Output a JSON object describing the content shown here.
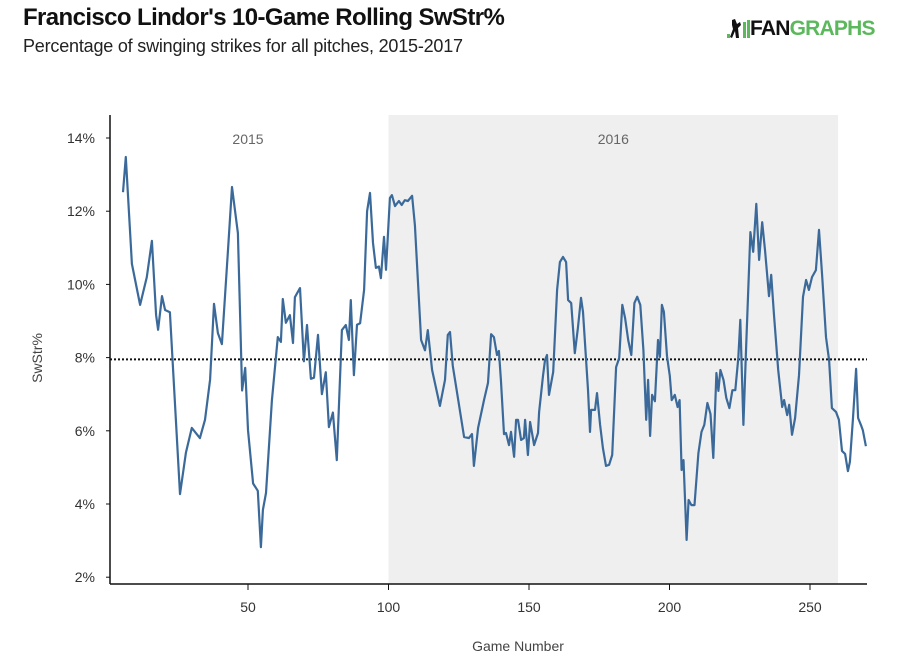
{
  "header": {
    "title": "Francisco Lindor's 10-Game Rolling SwStr%",
    "subtitle": "Percentage of swinging strikes for all pitches, 2015-2017",
    "logo_text_dark": "FAN",
    "logo_text_green": "GRAPHS",
    "logo_colors": {
      "dark": "#111111",
      "green": "#5cb85c"
    }
  },
  "chart_data": {
    "type": "line",
    "title": "Francisco Lindor's 10-Game Rolling SwStr%",
    "subtitle": "Percentage of swinging strikes for all pitches, 2015-2017",
    "xlabel": "Game Number",
    "ylabel": "SwStr%",
    "xlim": [
      0,
      272
    ],
    "ylim": [
      2,
      14.5
    ],
    "x_ticks": [
      50,
      100,
      150,
      200,
      250
    ],
    "x_tick_labels": [
      "50",
      "100",
      "150",
      "200",
      "250"
    ],
    "y_ticks": [
      2,
      4,
      6,
      8,
      10,
      12,
      14
    ],
    "y_tick_labels": [
      "2%",
      "4%",
      "6%",
      "8%",
      "10%",
      "12%",
      "14%"
    ],
    "grid": false,
    "reference_line": {
      "value": 7.95,
      "style": "dotted",
      "color": "#111111"
    },
    "season_shading": [
      {
        "label": "2015",
        "start": 0,
        "end": 100,
        "shaded": false
      },
      {
        "label": "2016",
        "start": 100,
        "end": 260,
        "shaded": true,
        "color": "#efefef"
      }
    ],
    "series": [
      {
        "name": "10-Game Rolling SwStr%",
        "color": "#3b6a9a",
        "x": [
          5.5,
          6.5,
          8.7,
          11.6,
          14,
          15.8,
          17.3,
          18,
          19.4,
          20.5,
          22.2,
          25.8,
          27.9,
          30,
          32.9,
          34.7,
          36.5,
          37.9,
          39.3,
          40.7,
          42.9,
          44.3,
          46.4,
          47.9,
          49,
          50,
          51.8,
          53.5,
          54.6,
          55.3,
          56.4,
          58.5,
          60.6,
          61.7,
          62.4,
          63.5,
          64.9,
          66,
          66.7,
          68.5,
          69.9,
          71,
          72.4,
          73.5,
          74.9,
          76.3,
          77.7,
          78.8,
          80.2,
          81.6,
          83.4,
          84.8,
          85.9,
          86.6,
          87.7,
          88.8,
          89.9,
          91.3,
          92.4,
          93.4,
          94.5,
          95.5,
          96.6,
          97.3,
          98.4,
          99.1,
          100.5,
          101.2,
          102.3,
          103.7,
          104.7,
          105.8,
          106.9,
          108.4,
          109.4,
          111.6,
          113,
          114,
          115.5,
          118.3,
          120.1,
          121.1,
          121.9,
          122.9,
          124.7,
          126.9,
          128.6,
          129.7,
          130.4,
          131.9,
          134,
          135.4,
          136.5,
          137.5,
          138.6,
          139.3,
          140,
          141.1,
          141.8,
          142.9,
          143.6,
          144.7,
          145.4,
          146.1,
          147.2,
          148.2,
          148.6,
          149.6,
          150.4,
          151.8,
          153.2,
          153.6,
          155,
          155.7,
          156.4,
          157.1,
          158.6,
          160,
          161,
          162.1,
          163.2,
          163.9,
          165,
          166.3,
          167.4,
          168.5,
          169.2,
          171,
          171.7,
          172.1,
          173.5,
          174.2,
          175.3,
          176.3,
          177.4,
          178.5,
          179.6,
          181,
          182.1,
          183.2,
          184.2,
          185.3,
          186.4,
          187.5,
          188.5,
          189.6,
          190.7,
          191.7,
          192.4,
          193.1,
          193.8,
          194.8,
          195.9,
          196.6,
          197.3,
          198,
          199.1,
          200.1,
          200.8,
          201.9,
          202.9,
          203.6,
          204.3,
          205,
          206.1,
          206.8,
          207.8,
          208.9,
          210.3,
          211.4,
          212.4,
          213.5,
          214.6,
          215.6,
          216.7,
          217.4,
          218.1,
          219.2,
          220.2,
          221.3,
          222.4,
          223.4,
          224.5,
          225.2,
          226.3,
          227.3,
          228.8,
          229.8,
          230.9,
          231.9,
          233,
          234,
          235.4,
          236.2,
          237.2,
          238.7,
          240.1,
          240.8,
          241.9,
          242.6,
          243.6,
          244.7,
          246.1,
          247.5,
          248.6,
          249.6,
          250.7,
          252.1,
          253.2,
          254.3,
          255.7,
          256.8,
          257.8,
          259.3,
          260.3,
          261.4,
          262.5,
          263.5,
          264.2,
          265.3,
          266.4,
          267.1,
          268.1,
          268.8,
          269.9
        ],
        "y": [
          12.52,
          13.48,
          10.56,
          9.44,
          10.2,
          11.19,
          9.16,
          8.76,
          9.68,
          9.3,
          9.24,
          4.27,
          5.4,
          6.08,
          5.8,
          6.3,
          7.4,
          9.47,
          8.67,
          8.37,
          10.94,
          12.66,
          11.4,
          7.1,
          7.72,
          6.02,
          4.56,
          4.36,
          2.82,
          3.84,
          4.3,
          6.83,
          8.56,
          8.43,
          9.6,
          8.95,
          9.16,
          8.4,
          9.65,
          9.9,
          7.9,
          8.89,
          7.42,
          7.45,
          8.62,
          7.0,
          7.6,
          6.1,
          6.5,
          5.2,
          8.75,
          8.89,
          8.48,
          9.57,
          7.52,
          8.9,
          8.94,
          9.85,
          12.0,
          12.5,
          11.13,
          10.45,
          10.49,
          10.17,
          11.3,
          10.4,
          12.36,
          12.44,
          12.14,
          12.28,
          12.17,
          12.3,
          12.28,
          12.42,
          11.62,
          8.48,
          8.2,
          8.75,
          7.66,
          6.68,
          7.39,
          8.62,
          8.7,
          7.77,
          6.9,
          5.83,
          5.8,
          5.91,
          5.04,
          6.08,
          6.84,
          7.31,
          8.64,
          8.56,
          8.07,
          8.18,
          7.39,
          5.91,
          5.94,
          5.61,
          5.97,
          5.29,
          6.3,
          6.3,
          5.75,
          5.8,
          6.3,
          5.34,
          6.24,
          5.61,
          5.94,
          6.51,
          7.5,
          7.93,
          8.07,
          6.98,
          7.61,
          9.85,
          10.61,
          10.75,
          10.61,
          9.57,
          9.49,
          8.12,
          8.81,
          9.63,
          9.25,
          7.12,
          5.97,
          6.57,
          6.57,
          7.03,
          6.16,
          5.53,
          5.04,
          5.07,
          5.34,
          7.74,
          7.99,
          9.44,
          9.08,
          8.48,
          8.07,
          9.49,
          9.66,
          9.44,
          8.21,
          6.3,
          7.39,
          5.86,
          6.98,
          6.81,
          8.48,
          8.02,
          9.44,
          9.25,
          8.04,
          7.5,
          6.84,
          6.98,
          6.65,
          6.84,
          4.93,
          5.2,
          3.02,
          4.11,
          3.97,
          3.97,
          5.39,
          5.97,
          6.16,
          6.76,
          6.46,
          5.26,
          7.58,
          7.09,
          7.66,
          7.39,
          6.9,
          6.62,
          7.11,
          7.11,
          7.99,
          9.03,
          6.16,
          8.34,
          11.43,
          10.89,
          12.2,
          10.67,
          11.7,
          10.94,
          9.68,
          10.26,
          9.16,
          7.66,
          6.65,
          6.84,
          6.43,
          6.71,
          5.89,
          6.35,
          7.52,
          9.66,
          10.12,
          9.85,
          10.2,
          10.39,
          11.49,
          10.26,
          8.56,
          7.93,
          6.62,
          6.51,
          6.3,
          5.45,
          5.37,
          4.9,
          5.15,
          6.35,
          7.69,
          6.35,
          6.16,
          6.02,
          5.58
        ]
      }
    ]
  }
}
